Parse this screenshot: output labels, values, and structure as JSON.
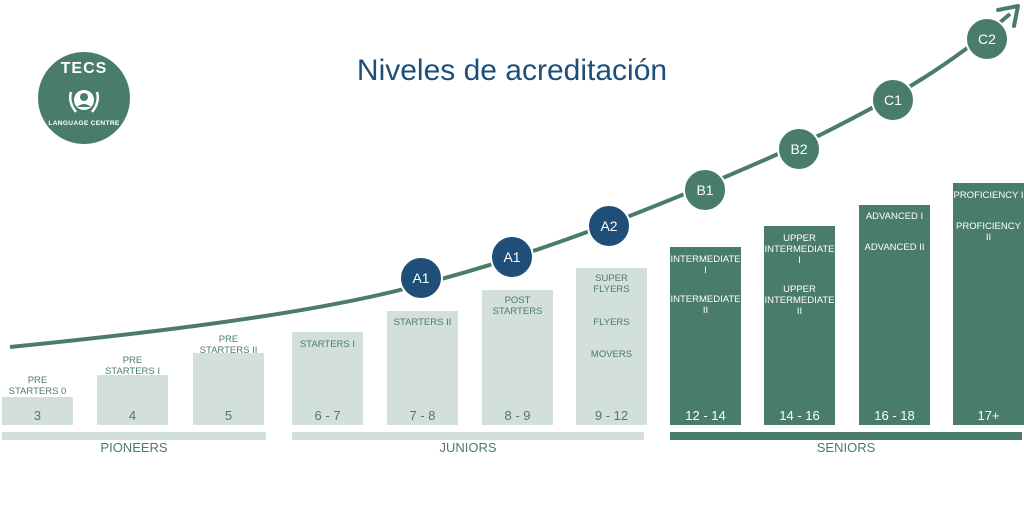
{
  "title": "Niveles de acreditación",
  "logo": {
    "top_text": "TECS",
    "bottom_text": "LANGUAGE CENTRE"
  },
  "colors": {
    "light": "#d3dfda",
    "dark": "#4a7c6b",
    "navy": "#1f4f79",
    "title": "#1d4f79",
    "curve": "#4a7c6b"
  },
  "curve_nodes": [
    {
      "label": "A1",
      "color": "navy"
    },
    {
      "label": "A1",
      "color": "navy"
    },
    {
      "label": "A2",
      "color": "navy"
    },
    {
      "label": "B1",
      "color": "green"
    },
    {
      "label": "B2",
      "color": "green"
    },
    {
      "label": "C1",
      "color": "green"
    },
    {
      "label": "C2",
      "color": "green"
    }
  ],
  "bars": [
    {
      "ages": "3",
      "levels": [
        "PRE\nSTARTERS 0"
      ],
      "style": "light"
    },
    {
      "ages": "4",
      "levels": [
        "PRE\nSTARTERS I"
      ],
      "style": "light"
    },
    {
      "ages": "5",
      "levels": [
        "PRE\nSTARTERS II"
      ],
      "style": "light"
    },
    {
      "ages": "6 - 7",
      "levels": [
        "STARTERS I"
      ],
      "style": "light"
    },
    {
      "ages": "7 - 8",
      "levels": [
        "STARTERS II"
      ],
      "style": "light"
    },
    {
      "ages": "8 - 9",
      "levels": [
        "POST\nSTARTERS"
      ],
      "style": "light"
    },
    {
      "ages": "9 - 12",
      "levels": [
        "SUPER\nFLYERS",
        "FLYERS",
        "MOVERS"
      ],
      "style": "light"
    },
    {
      "ages": "12 - 14",
      "levels": [
        "INTERMEDIATE I",
        "INTERMEDIATE II"
      ],
      "style": "dark"
    },
    {
      "ages": "14 - 16",
      "levels": [
        "UPPER\nINTERMEDIATE I",
        "UPPER\nINTERMEDIATE II"
      ],
      "style": "dark"
    },
    {
      "ages": "16 - 18",
      "levels": [
        "ADVANCED I",
        "ADVANCED II"
      ],
      "style": "dark"
    },
    {
      "ages": "17+",
      "levels": [
        "PROFICIENCY I",
        "PROFICIENCY II"
      ],
      "style": "dark"
    }
  ],
  "groups": [
    {
      "label": "PIONEERS",
      "style": "light"
    },
    {
      "label": "JUNIORS",
      "style": "light"
    },
    {
      "label": "SENIORS",
      "style": "dark"
    }
  ]
}
